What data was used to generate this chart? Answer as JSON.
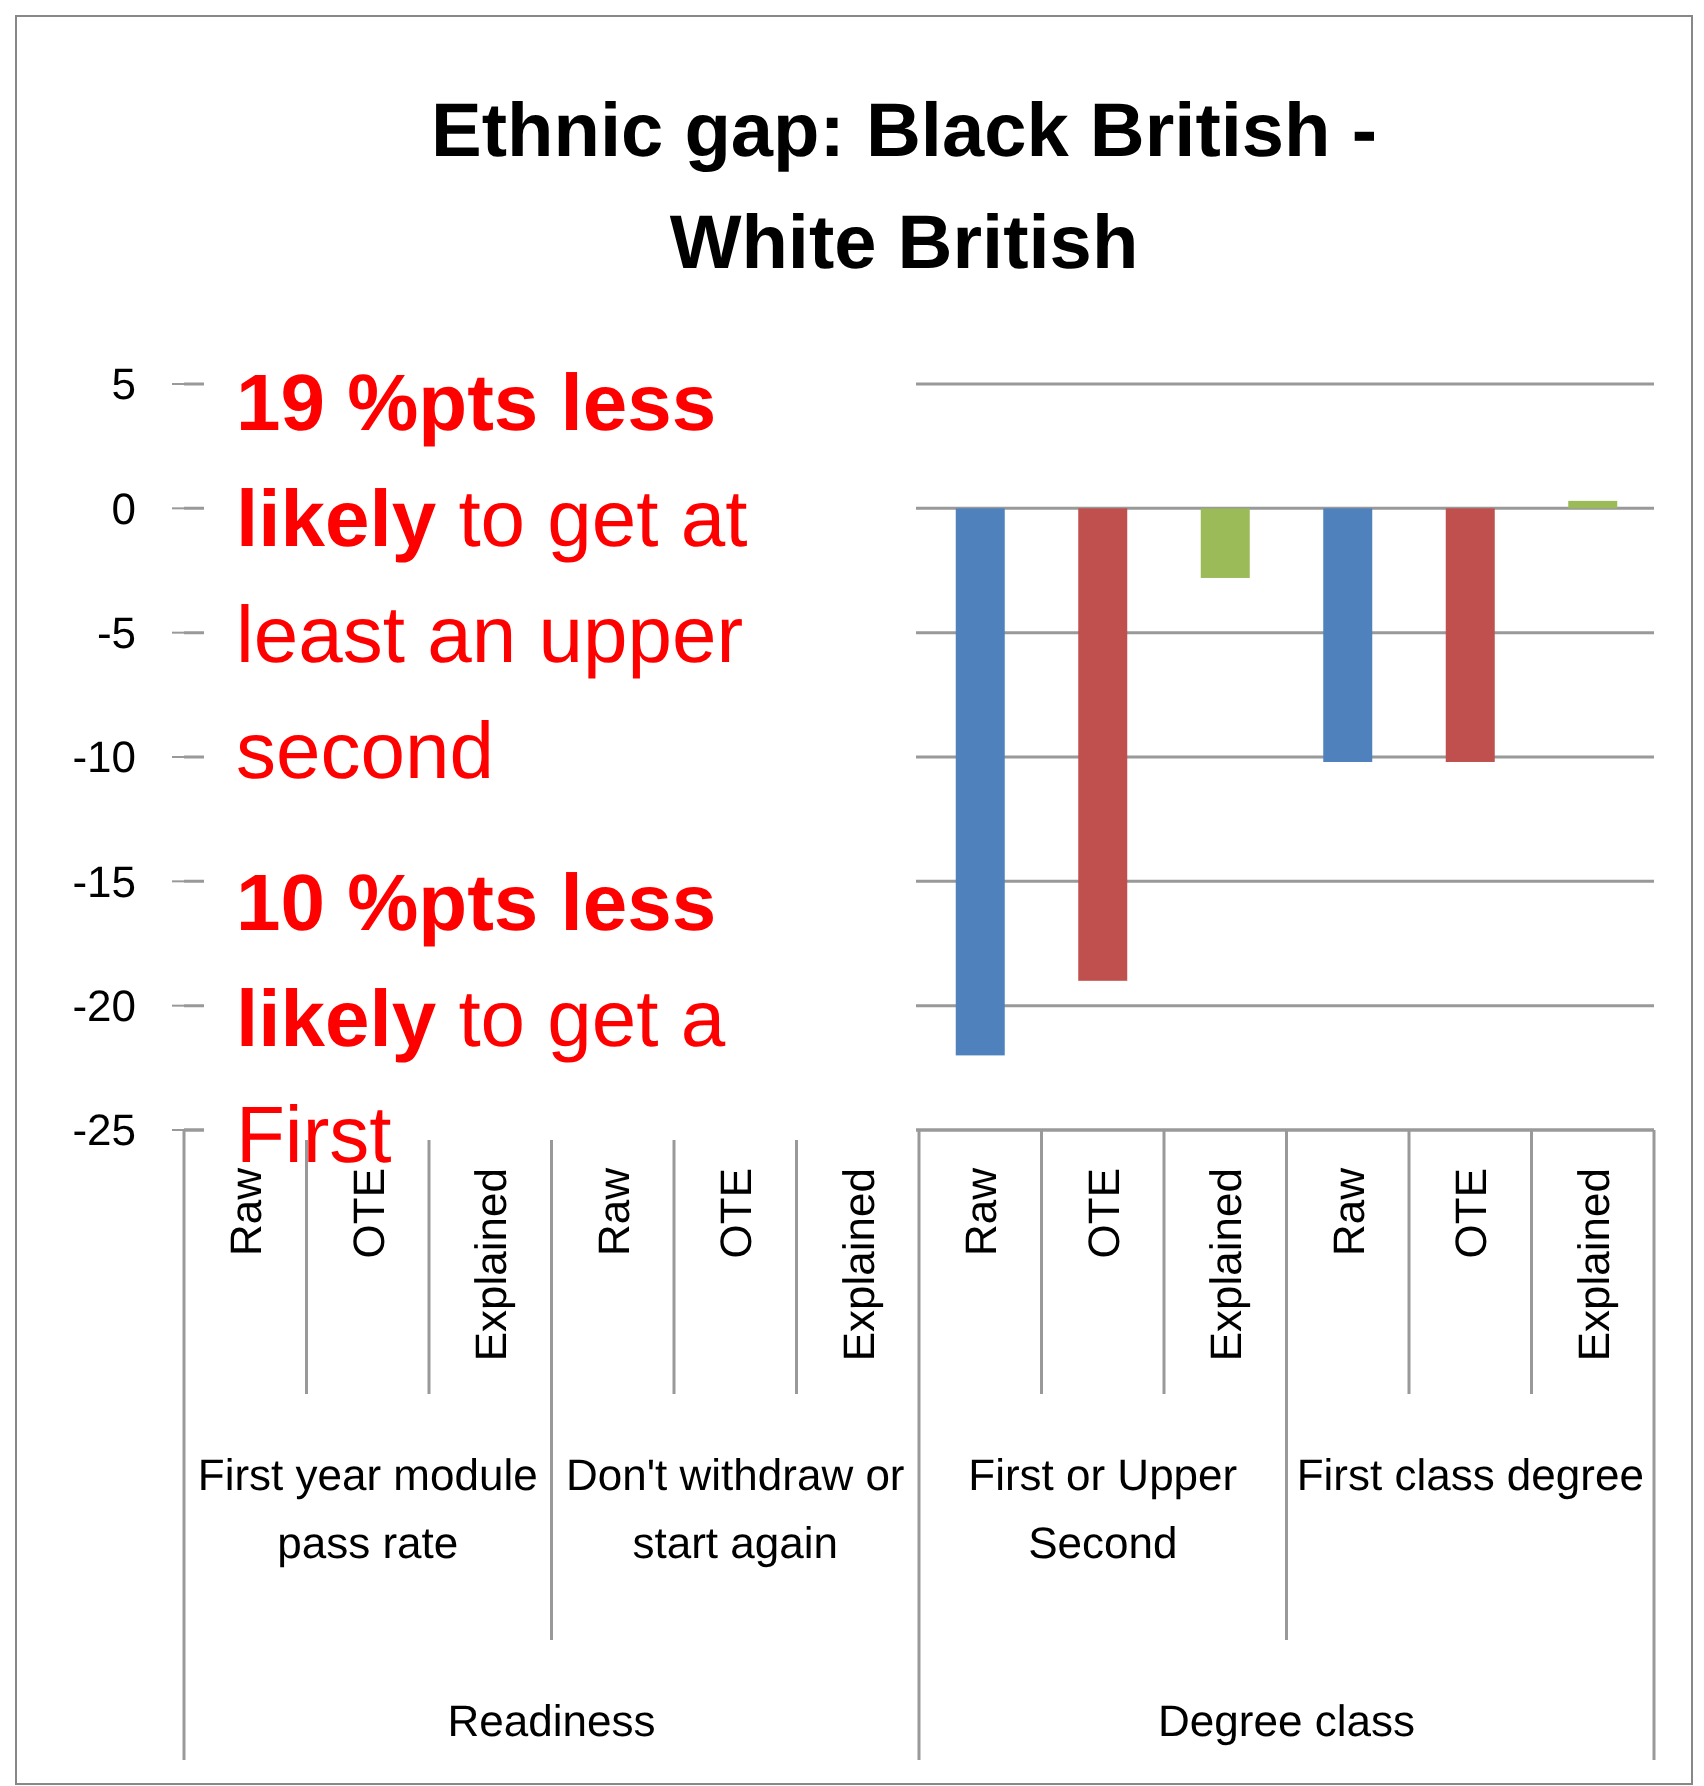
{
  "chart_data": {
    "type": "bar",
    "title": "Ethnic gap: Black British - White British",
    "categories": [
      "Raw",
      "OTE",
      "Explained",
      "Raw",
      "OTE",
      "Explained",
      "Raw",
      "OTE",
      "Explained",
      "Raw",
      "OTE",
      "Explained"
    ],
    "values": [
      null,
      null,
      null,
      null,
      null,
      null,
      -22,
      -19,
      -2.8,
      -10.2,
      -10.2,
      0.3
    ],
    "colors": [
      null,
      null,
      null,
      null,
      null,
      null,
      "#4f81bd",
      "#c0504d",
      "#9bbb59",
      "#4f81bd",
      "#c0504d",
      "#9bbb59"
    ],
    "ylim": [
      -25,
      5
    ],
    "yticks": [
      5,
      0,
      -5,
      -10,
      -15,
      -20,
      -25
    ],
    "grid": "y",
    "annotations": [
      "19 %pts less likely",
      "to get at least an upper second",
      "10 %pts less likely",
      "to get a First",
      "First year module pass rate",
      "Don't withdraw or start again",
      "First or Upper Second",
      "First class degree",
      "Readiness",
      "Degree class"
    ]
  }
}
